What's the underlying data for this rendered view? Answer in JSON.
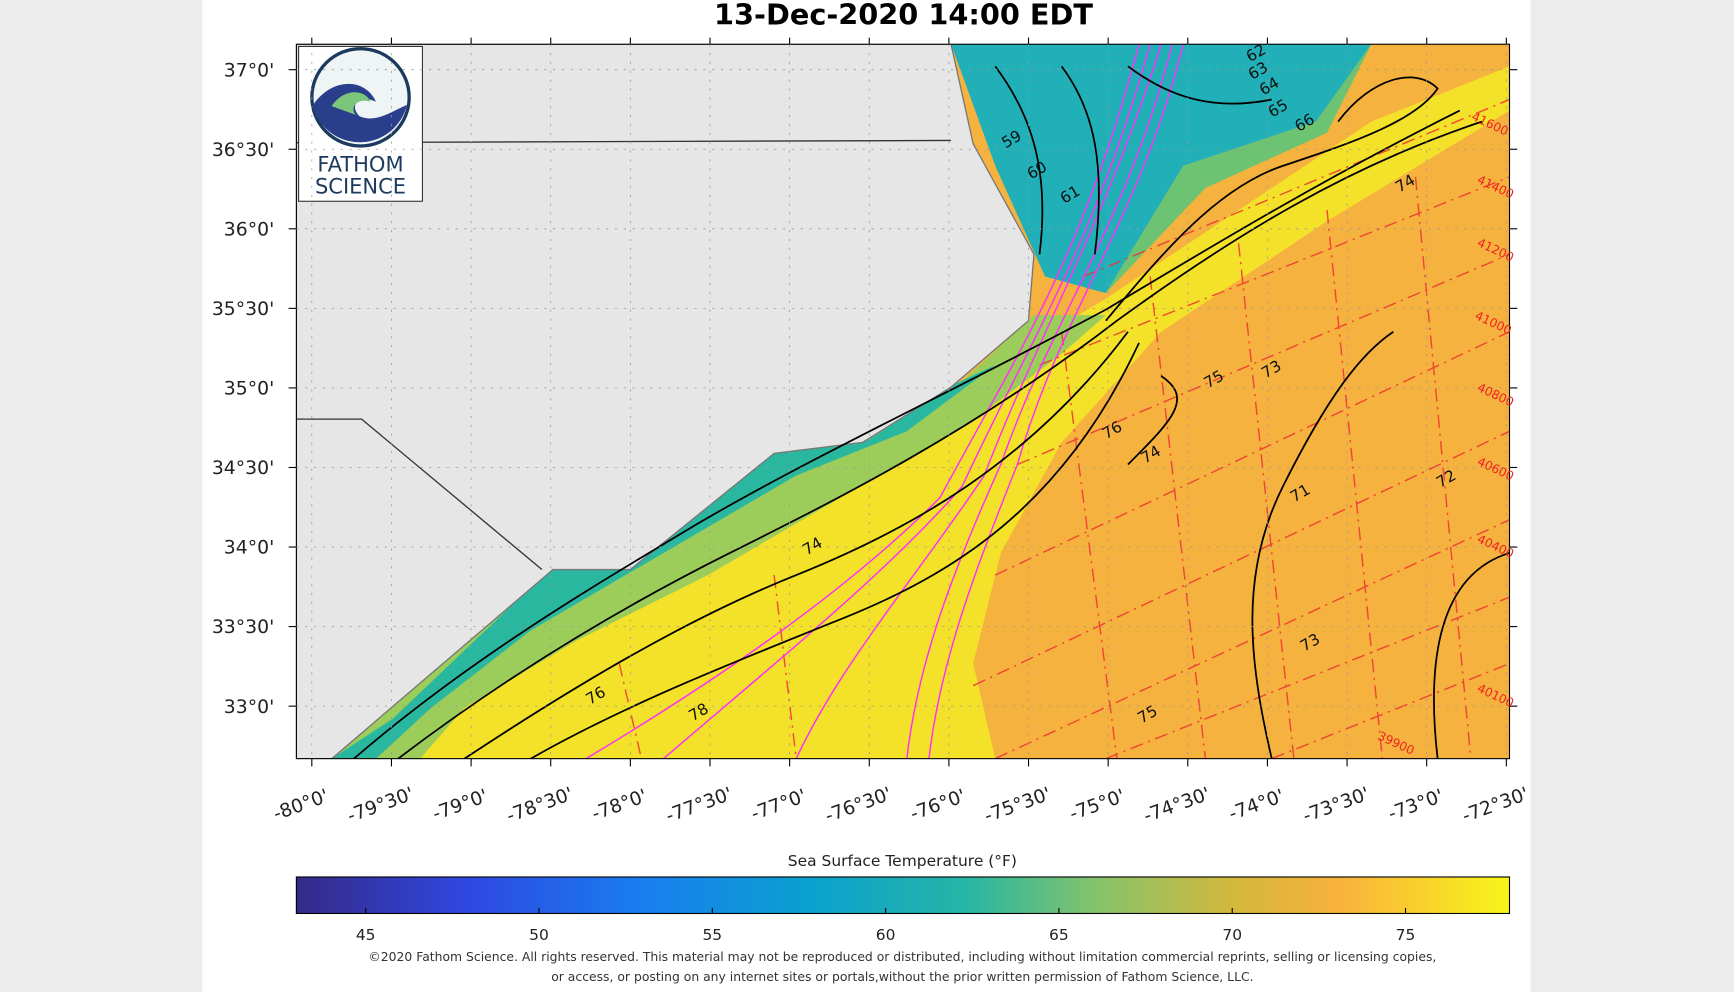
{
  "map": {
    "title": "13-Dec-2020 14:00 EDT",
    "xlim": [
      -80.097,
      -72.48
    ],
    "ylim": [
      32.67,
      37.16
    ],
    "xticks": [
      {
        "value": -80,
        "label": "-80°0'"
      },
      {
        "value": -79.5,
        "label": "-79°30'"
      },
      {
        "value": -79,
        "label": "-79°0'"
      },
      {
        "value": -78.5,
        "label": "-78°30'"
      },
      {
        "value": -78,
        "label": "-78°0'"
      },
      {
        "value": -77.5,
        "label": "-77°30'"
      },
      {
        "value": -77,
        "label": "-77°0'"
      },
      {
        "value": -76.5,
        "label": "-76°30'"
      },
      {
        "value": -76,
        "label": "-76°0'"
      },
      {
        "value": -75.5,
        "label": "-75°30'"
      },
      {
        "value": -75,
        "label": "-75°0'"
      },
      {
        "value": -74.5,
        "label": "-74°30'"
      },
      {
        "value": -74,
        "label": "-74°0'"
      },
      {
        "value": -73.5,
        "label": "-73°30'"
      },
      {
        "value": -73,
        "label": "-73°0'"
      },
      {
        "value": -72.5,
        "label": "-72°30'"
      }
    ],
    "yticks": [
      {
        "value": 33,
        "label": "33°0'"
      },
      {
        "value": 33.5,
        "label": "33°30'"
      },
      {
        "value": 34,
        "label": "34°0'"
      },
      {
        "value": 34.5,
        "label": "34°30'"
      },
      {
        "value": 35,
        "label": "35°0'"
      },
      {
        "value": 35.5,
        "label": "35°30'"
      },
      {
        "value": 36,
        "label": "36°0'"
      },
      {
        "value": 36.5,
        "label": "36°30'"
      },
      {
        "value": 37,
        "label": "37°0'"
      }
    ],
    "isotherm_labels": [
      59,
      60,
      61,
      62,
      63,
      64,
      65,
      66,
      74,
      76,
      78,
      75,
      73,
      72,
      73,
      75,
      71,
      74,
      76,
      74
    ],
    "grid_labels": [
      41600,
      41400,
      41200,
      41000,
      40800,
      40600,
      40400,
      40100,
      39900
    ],
    "colorbar": {
      "label": "Sea Surface Temperature (°F)",
      "lim": [
        43,
        78
      ],
      "ticks": [
        45,
        50,
        55,
        60,
        65,
        70,
        75
      ]
    },
    "logo": [
      "FATHOM",
      "SCIENCE"
    ],
    "copyright": [
      "©2020 Fathom Science. All rights reserved. This material may not be reproduced or distributed, including without limitation commercial reprints, selling or licensing copies,",
      "or access, or posting on any internet sites or portals,without the prior written permission of Fathom Science, LLC."
    ]
  }
}
